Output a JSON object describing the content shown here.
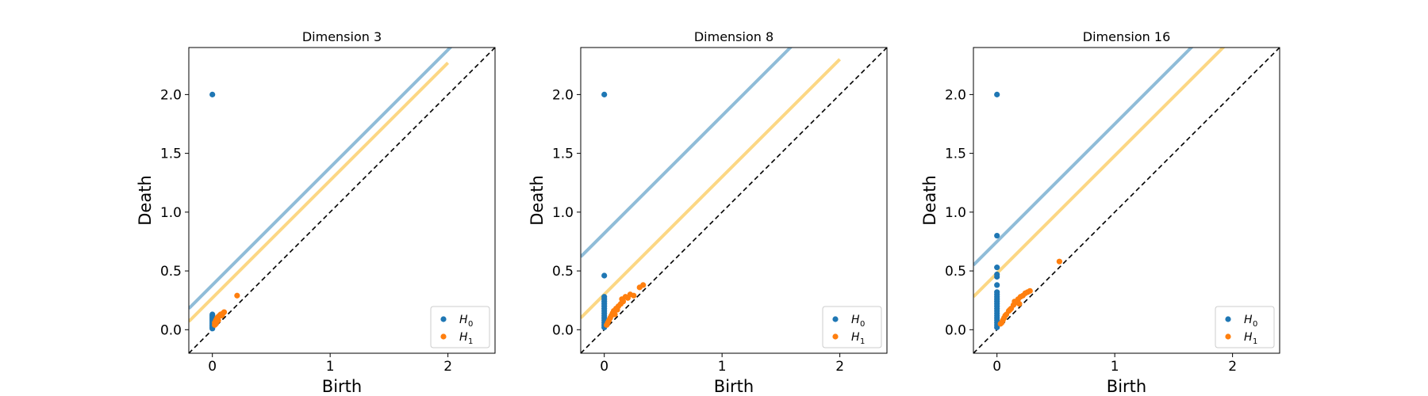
{
  "figure": {
    "legend_labels": {
      "h0": "H",
      "h0_sub": "0",
      "h1": "H",
      "h1_sub": "1"
    }
  },
  "chart_data": [
    {
      "type": "scatter",
      "title": "Dimension 3",
      "xlabel": "Birth",
      "ylabel": "Death",
      "xlim": [
        -0.2,
        2.4
      ],
      "ylim": [
        -0.2,
        2.4
      ],
      "xticks": [
        0,
        1,
        2
      ],
      "yticks": [
        0.0,
        0.5,
        1.0,
        1.5,
        2.0
      ],
      "xtick_labels": [
        "0",
        "1",
        "2"
      ],
      "ytick_labels": [
        "0.0",
        "0.5",
        "1.0",
        "1.5",
        "2.0"
      ],
      "grid": false,
      "legend_position": "bottom-right",
      "diagonal": true,
      "threshold_lines": {
        "h0_offset": 0.38,
        "h1_offset": 0.27
      },
      "series": [
        {
          "name": "H0",
          "color": "#1f77b4",
          "points": [
            [
              0,
              2.0
            ],
            [
              0,
              0.13
            ],
            [
              0,
              0.12
            ],
            [
              0,
              0.11
            ],
            [
              0,
              0.1
            ],
            [
              0,
              0.09
            ],
            [
              0,
              0.08
            ],
            [
              0,
              0.07
            ],
            [
              0,
              0.06
            ],
            [
              0,
              0.05
            ],
            [
              0,
              0.04
            ],
            [
              0,
              0.03
            ],
            [
              0,
              0.02
            ],
            [
              0,
              0.01
            ]
          ]
        },
        {
          "name": "H1",
          "color": "#ff7f0e",
          "points": [
            [
              0.21,
              0.29
            ],
            [
              0.1,
              0.15
            ],
            [
              0.09,
              0.14
            ],
            [
              0.07,
              0.13
            ],
            [
              0.06,
              0.12
            ],
            [
              0.05,
              0.11
            ],
            [
              0.04,
              0.1
            ],
            [
              0.08,
              0.12
            ],
            [
              0.03,
              0.08
            ],
            [
              0.02,
              0.06
            ],
            [
              0.05,
              0.08
            ],
            [
              0.04,
              0.07
            ],
            [
              0.03,
              0.05
            ],
            [
              0.02,
              0.04
            ]
          ]
        }
      ]
    },
    {
      "type": "scatter",
      "title": "Dimension 8",
      "xlabel": "Birth",
      "ylabel": "Death",
      "xlim": [
        -0.2,
        2.4
      ],
      "ylim": [
        -0.2,
        2.4
      ],
      "xticks": [
        0,
        1,
        2
      ],
      "yticks": [
        0.0,
        0.5,
        1.0,
        1.5,
        2.0
      ],
      "xtick_labels": [
        "0",
        "1",
        "2"
      ],
      "ytick_labels": [
        "0.0",
        "0.5",
        "1.0",
        "1.5",
        "2.0"
      ],
      "grid": false,
      "legend_position": "bottom-right",
      "diagonal": true,
      "threshold_lines": {
        "h0_offset": 0.82,
        "h1_offset": 0.3
      },
      "series": [
        {
          "name": "H0",
          "color": "#1f77b4",
          "points": [
            [
              0,
              2.0
            ],
            [
              0,
              0.46
            ],
            [
              0,
              0.28
            ],
            [
              0,
              0.26
            ],
            [
              0,
              0.24
            ],
            [
              0,
              0.22
            ],
            [
              0,
              0.2
            ],
            [
              0,
              0.18
            ],
            [
              0,
              0.16
            ],
            [
              0,
              0.14
            ],
            [
              0,
              0.12
            ],
            [
              0,
              0.1
            ],
            [
              0,
              0.08
            ],
            [
              0,
              0.06
            ],
            [
              0,
              0.04
            ],
            [
              0,
              0.02
            ]
          ]
        },
        {
          "name": "H1",
          "color": "#ff7f0e",
          "points": [
            [
              0.33,
              0.38
            ],
            [
              0.3,
              0.36
            ],
            [
              0.22,
              0.3
            ],
            [
              0.18,
              0.28
            ],
            [
              0.2,
              0.27
            ],
            [
              0.15,
              0.26
            ],
            [
              0.16,
              0.24
            ],
            [
              0.14,
              0.22
            ],
            [
              0.12,
              0.2
            ],
            [
              0.1,
              0.18
            ],
            [
              0.08,
              0.16
            ],
            [
              0.07,
              0.14
            ],
            [
              0.06,
              0.12
            ],
            [
              0.05,
              0.1
            ],
            [
              0.04,
              0.08
            ],
            [
              0.03,
              0.06
            ],
            [
              0.02,
              0.04
            ],
            [
              0.25,
              0.29
            ],
            [
              0.11,
              0.17
            ],
            [
              0.09,
              0.13
            ]
          ]
        }
      ]
    },
    {
      "type": "scatter",
      "title": "Dimension 16",
      "xlabel": "Birth",
      "ylabel": "Death",
      "xlim": [
        -0.2,
        2.4
      ],
      "ylim": [
        -0.2,
        2.4
      ],
      "xticks": [
        0,
        1,
        2
      ],
      "yticks": [
        0.0,
        0.5,
        1.0,
        1.5,
        2.0
      ],
      "xtick_labels": [
        "0",
        "1",
        "2"
      ],
      "ytick_labels": [
        "0.0",
        "0.5",
        "1.0",
        "1.5",
        "2.0"
      ],
      "grid": false,
      "legend_position": "bottom-right",
      "diagonal": true,
      "threshold_lines": {
        "h0_offset": 0.75,
        "h1_offset": 0.48
      },
      "series": [
        {
          "name": "H0",
          "color": "#1f77b4",
          "points": [
            [
              0,
              2.0
            ],
            [
              0,
              0.8
            ],
            [
              0,
              0.53
            ],
            [
              0,
              0.47
            ],
            [
              0,
              0.45
            ],
            [
              0,
              0.38
            ],
            [
              0,
              0.32
            ],
            [
              0,
              0.3
            ],
            [
              0,
              0.28
            ],
            [
              0,
              0.26
            ],
            [
              0,
              0.24
            ],
            [
              0,
              0.22
            ],
            [
              0,
              0.2
            ],
            [
              0,
              0.18
            ],
            [
              0,
              0.16
            ],
            [
              0,
              0.14
            ],
            [
              0,
              0.12
            ],
            [
              0,
              0.1
            ],
            [
              0,
              0.08
            ],
            [
              0,
              0.06
            ],
            [
              0,
              0.04
            ],
            [
              0,
              0.02
            ]
          ]
        },
        {
          "name": "H1",
          "color": "#ff7f0e",
          "points": [
            [
              0.53,
              0.58
            ],
            [
              0.28,
              0.33
            ],
            [
              0.26,
              0.32
            ],
            [
              0.24,
              0.31
            ],
            [
              0.2,
              0.28
            ],
            [
              0.18,
              0.26
            ],
            [
              0.16,
              0.23
            ],
            [
              0.14,
              0.21
            ],
            [
              0.12,
              0.18
            ],
            [
              0.1,
              0.16
            ],
            [
              0.08,
              0.13
            ],
            [
              0.06,
              0.1
            ],
            [
              0.05,
              0.08
            ],
            [
              0.04,
              0.06
            ],
            [
              0.22,
              0.29
            ],
            [
              0.15,
              0.24
            ],
            [
              0.11,
              0.17
            ],
            [
              0.07,
              0.12
            ],
            [
              0.03,
              0.05
            ],
            [
              0.19,
              0.22
            ]
          ]
        }
      ]
    }
  ]
}
